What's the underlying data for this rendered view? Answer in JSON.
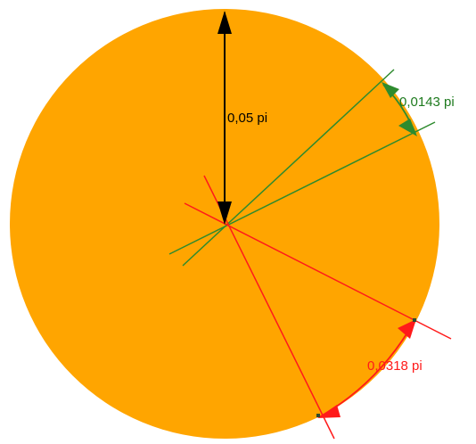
{
  "colors": {
    "disk": "#ffa500",
    "radius_dimension": "#000000",
    "small_angle": "#2e8b2e",
    "large_angle": "#ff1a1a"
  },
  "dimensions": {
    "radius_label": "0,05 pi",
    "small_angle_label": "0,0143 pi",
    "large_angle_label": "0,0318 pi"
  }
}
